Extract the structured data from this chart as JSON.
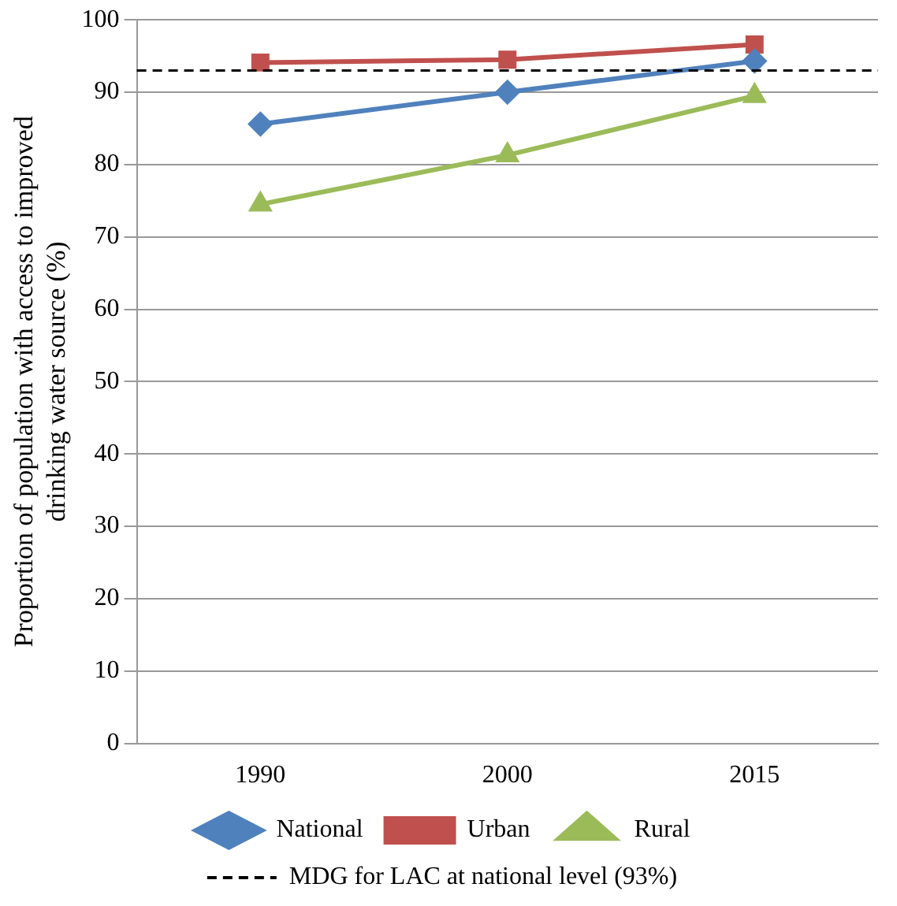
{
  "chart_data": {
    "type": "line",
    "ylabel": "Proportion of population with access to improved drinking water source (%)",
    "categories": [
      "1990",
      "2000",
      "2015"
    ],
    "series": [
      {
        "name": "National",
        "color": "#4f81bd",
        "values": [
          85.6,
          90.0,
          94.3
        ],
        "marker": "diamond"
      },
      {
        "name": "Urban",
        "color": "#c0504d",
        "values": [
          94.1,
          94.5,
          96.6
        ],
        "marker": "square"
      },
      {
        "name": "Rural",
        "color": "#9bbb59",
        "values": [
          74.5,
          81.3,
          89.5
        ],
        "marker": "triangle"
      }
    ],
    "ylim": [
      0,
      100
    ],
    "yticks": [
      0,
      10,
      20,
      30,
      40,
      50,
      60,
      70,
      80,
      90,
      100
    ],
    "grid": "y",
    "legend": "bottom",
    "line_style": "solid",
    "ref_lines": [
      {
        "axis": "y",
        "value": 93,
        "label": "MDG for LAC at national level (93%)",
        "color": "#000000",
        "line_style": "dashed"
      }
    ]
  }
}
